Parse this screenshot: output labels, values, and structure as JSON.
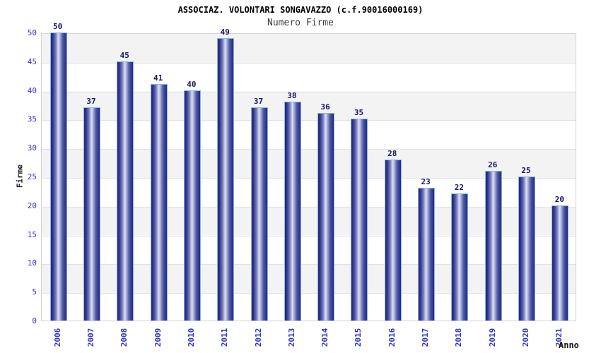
{
  "title": "ASSOCIAZ. VOLONTARI SONGAVAZZO (c.f.90016000169)",
  "subtitle": "Numero Firme",
  "chart_data": {
    "type": "bar",
    "title": "ASSOCIAZ. VOLONTARI SONGAVAZZO (c.f.90016000169)",
    "subtitle": "Numero Firme",
    "categories": [
      "2006",
      "2007",
      "2008",
      "2009",
      "2010",
      "2011",
      "2012",
      "2013",
      "2014",
      "2015",
      "2016",
      "2017",
      "2018",
      "2019",
      "2020",
      "2021"
    ],
    "values": [
      50,
      37,
      45,
      41,
      40,
      49,
      37,
      38,
      36,
      35,
      28,
      23,
      22,
      26,
      25,
      20
    ],
    "xlabel": "Anno",
    "ylabel": "Firme",
    "ylim": [
      0,
      50
    ],
    "ytick_step": 5,
    "ytick_labels": [
      "0",
      "5",
      "10",
      "15",
      "20",
      "25",
      "30",
      "35",
      "40",
      "45",
      "50"
    ],
    "grid": "horizontal-bands-alternating",
    "legend": "none",
    "data_labels": "above-bars",
    "colors": {
      "bar_edge": "#26267f",
      "bar_highlight": "#dde1f2",
      "bar_border": "#86b7e4",
      "tick_label": "#3232cd",
      "value_label": "#15156b",
      "band_gray": "#f3f3f3",
      "band_white": "#ffffff",
      "gridline": "#e2e2e2",
      "plot_border": "#d4d4d4",
      "title_color": "#000000",
      "subtitle_color": "#3d3d3d",
      "axis_title_color": "#1a1a1a"
    }
  }
}
